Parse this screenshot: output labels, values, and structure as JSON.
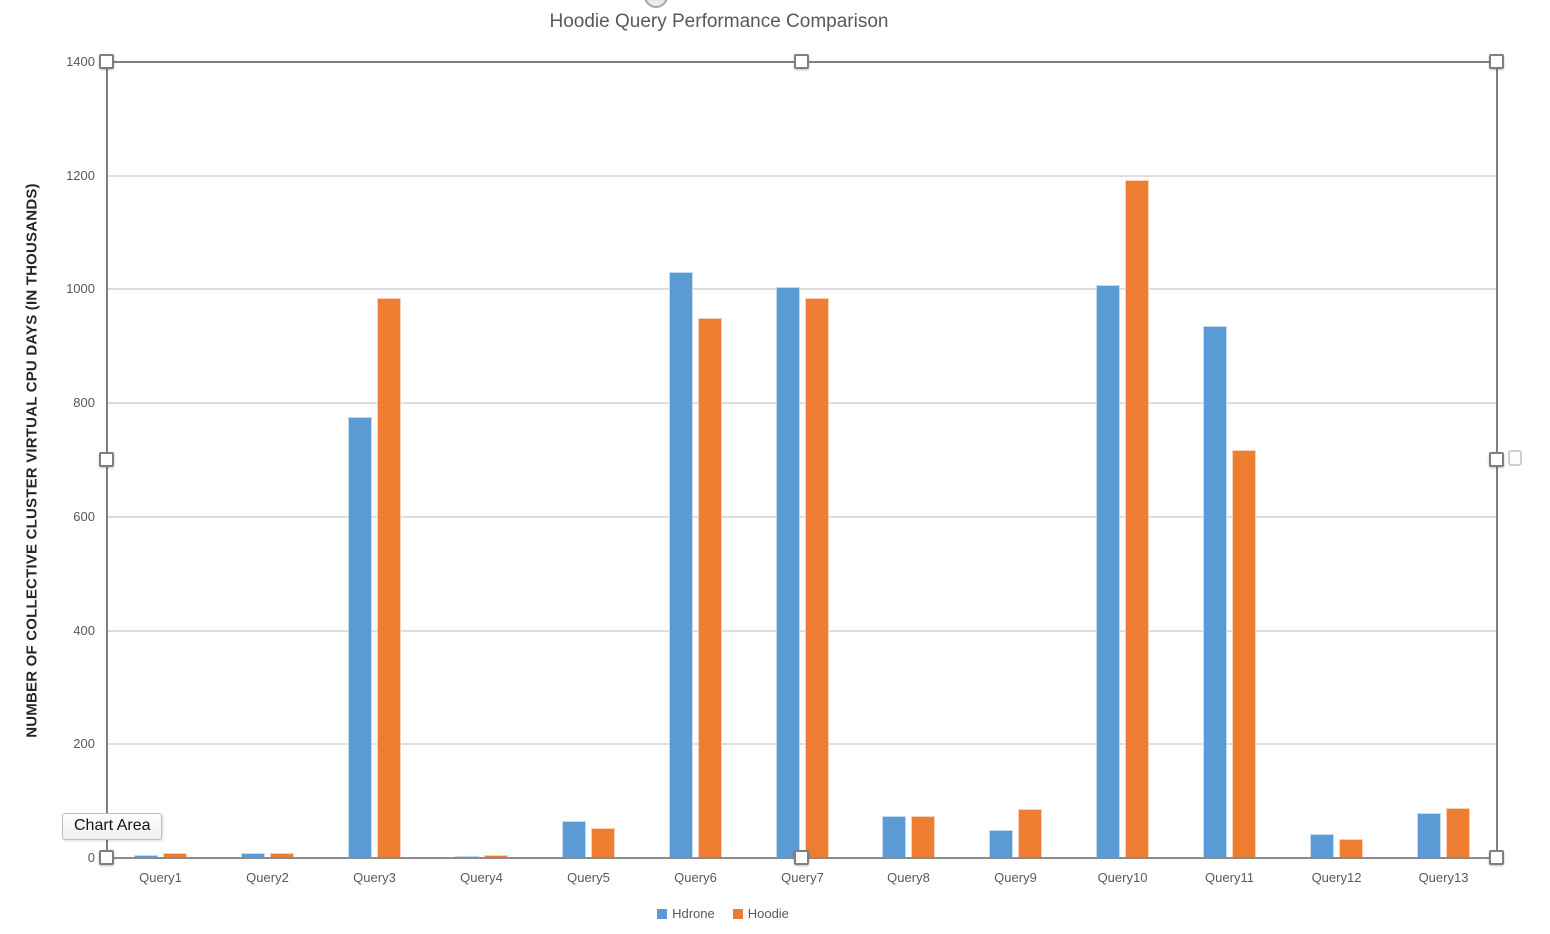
{
  "chart_data": {
    "type": "bar",
    "title": "Hoodie Query Performance Comparison",
    "xlabel": "",
    "ylabel": "NUMBER OF COLLECTIVE CLUSTER VIRTUAL CPU DAYS (IN THOUSANDS)",
    "categories": [
      "Query1",
      "Query2",
      "Query3",
      "Query4",
      "Query5",
      "Query6",
      "Query7",
      "Query8",
      "Query9",
      "Query10",
      "Query11",
      "Query12",
      "Query13"
    ],
    "series": [
      {
        "name": "Hdrone",
        "color": "#5B9BD5",
        "values": [
          5,
          9,
          775,
          4,
          65,
          1030,
          1005,
          74,
          50,
          1007,
          935,
          42,
          80
        ]
      },
      {
        "name": "Hoodie",
        "color": "#ED7D31",
        "values": [
          9,
          9,
          985,
          5,
          52,
          950,
          985,
          74,
          86,
          1193,
          718,
          34,
          88
        ]
      }
    ],
    "ylim": [
      0,
      1400
    ],
    "yticks": [
      0,
      200,
      400,
      600,
      800,
      1000,
      1200,
      1400
    ],
    "grid": true,
    "legend_position": "bottom"
  },
  "selection": {
    "tooltip_label": "Chart Area",
    "handle_positions": [
      "top-left",
      "top-middle",
      "top-right",
      "middle-left",
      "middle-right",
      "bottom-left",
      "bottom-middle",
      "bottom-right"
    ]
  },
  "colors": {
    "series_blue": "#5B9BD5",
    "series_orange": "#ED7D31",
    "gridline": "#DEDEDE",
    "axis_text": "#595959",
    "title_text": "#595959",
    "selection_border": "#808080"
  }
}
